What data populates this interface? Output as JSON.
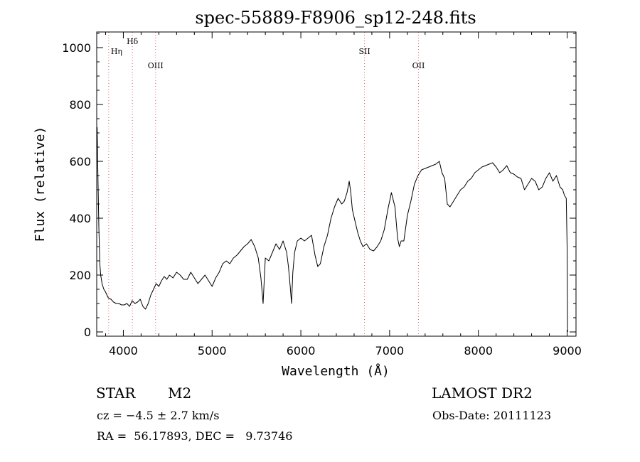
{
  "chart_data": {
    "type": "line",
    "title": "spec-55889-F8906_sp12-248.fits",
    "xlabel": "Wavelength (Å)",
    "ylabel": "Flux (relative)",
    "xlim": [
      3700,
      9100
    ],
    "ylim": [
      -15,
      1055
    ],
    "x_ticks": [
      4000,
      5000,
      6000,
      7000,
      8000,
      9000
    ],
    "y_ticks": [
      0,
      200,
      400,
      600,
      800,
      1000
    ],
    "grid": false,
    "line_color": "#000000",
    "marker_color": "#e06060",
    "lines": [
      {
        "label": "Hη",
        "x": 3835
      },
      {
        "label": "Hδ",
        "x": 4102
      },
      {
        "label": "OIII",
        "x": 4363
      },
      {
        "label": "SII",
        "x": 6717
      },
      {
        "label": "OII",
        "x": 7325
      }
    ],
    "series": [
      {
        "x": [
          3705,
          3715,
          3725,
          3735,
          3745,
          3760,
          3780,
          3800,
          3830,
          3860,
          3890,
          3920,
          3950,
          3980,
          4010,
          4040,
          4070,
          4100,
          4130,
          4160,
          4190,
          4220,
          4250,
          4280,
          4310,
          4340,
          4370,
          4400,
          4430,
          4460,
          4490,
          4520,
          4560,
          4600,
          4640,
          4680,
          4720,
          4760,
          4800,
          4840,
          4880,
          4920,
          4960,
          5000,
          5040,
          5080,
          5120,
          5160,
          5200,
          5240,
          5280,
          5320,
          5360,
          5400,
          5440,
          5480,
          5520,
          5550,
          5575,
          5600,
          5640,
          5680,
          5720,
          5760,
          5800,
          5840,
          5860,
          5880,
          5895,
          5910,
          5930,
          5960,
          6000,
          6040,
          6080,
          6120,
          6160,
          6190,
          6220,
          6260,
          6300,
          6340,
          6380,
          6420,
          6460,
          6490,
          6520,
          6545,
          6563,
          6580,
          6610,
          6640,
          6670,
          6700,
          6740,
          6780,
          6820,
          6860,
          6900,
          6940,
          6980,
          7020,
          7060,
          7090,
          7110,
          7130,
          7160,
          7200,
          7240,
          7280,
          7320,
          7360,
          7400,
          7440,
          7480,
          7520,
          7560,
          7590,
          7620,
          7650,
          7680,
          7720,
          7760,
          7800,
          7840,
          7880,
          7920,
          7960,
          8000,
          8040,
          8080,
          8120,
          8160,
          8200,
          8240,
          8280,
          8320,
          8360,
          8400,
          8440,
          8480,
          8520,
          8560,
          8600,
          8640,
          8680,
          8720,
          8760,
          8800,
          8840,
          8880,
          8920,
          8950,
          8970,
          8990,
          9000,
          9005
        ],
        "values": [
          720,
          520,
          360,
          240,
          200,
          170,
          150,
          140,
          120,
          115,
          105,
          100,
          100,
          95,
          95,
          100,
          90,
          110,
          100,
          105,
          115,
          90,
          80,
          100,
          130,
          150,
          170,
          160,
          180,
          195,
          185,
          200,
          190,
          210,
          200,
          185,
          185,
          210,
          190,
          170,
          185,
          200,
          180,
          160,
          190,
          210,
          240,
          250,
          240,
          260,
          270,
          285,
          300,
          310,
          325,
          300,
          260,
          190,
          100,
          260,
          250,
          280,
          310,
          290,
          320,
          280,
          230,
          160,
          100,
          210,
          280,
          320,
          330,
          320,
          330,
          340,
          270,
          230,
          240,
          300,
          340,
          400,
          440,
          470,
          450,
          460,
          490,
          530,
          490,
          430,
          390,
          350,
          320,
          300,
          310,
          290,
          285,
          300,
          320,
          360,
          430,
          490,
          440,
          330,
          300,
          320,
          320,
          410,
          460,
          520,
          550,
          570,
          575,
          580,
          585,
          590,
          600,
          560,
          540,
          450,
          440,
          460,
          480,
          500,
          510,
          530,
          540,
          560,
          570,
          580,
          585,
          590,
          595,
          580,
          560,
          570,
          585,
          560,
          555,
          545,
          540,
          500,
          520,
          540,
          530,
          500,
          510,
          540,
          560,
          530,
          550,
          510,
          500,
          480,
          470,
          300,
          0
        ]
      }
    ]
  },
  "info": {
    "object_class": "STAR",
    "subclass": "M2",
    "survey": "LAMOST DR2",
    "cz": "cz = −4.5 ± 2.7 km/s",
    "obs_date": "Obs-Date: 20111123",
    "coords": "RA =  56.17893, DEC =   9.73746"
  }
}
